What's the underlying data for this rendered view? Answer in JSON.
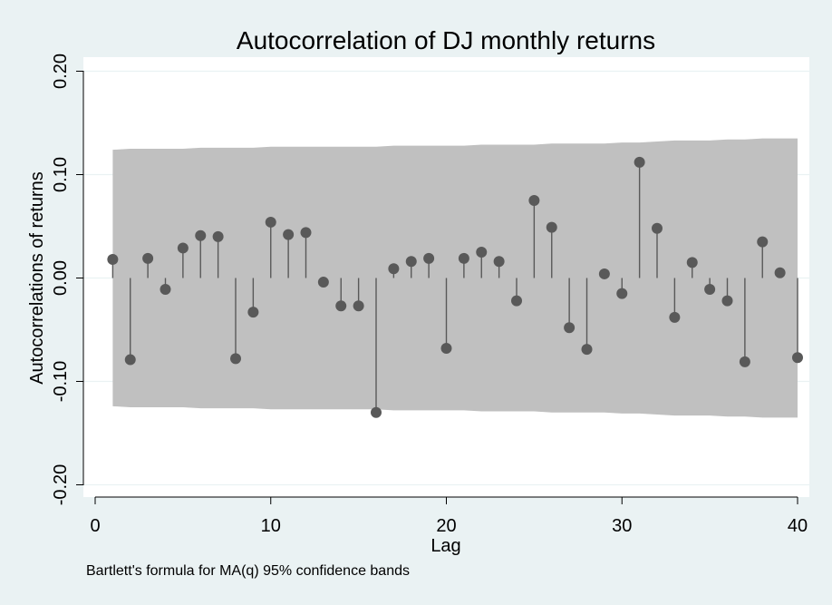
{
  "chart_data": {
    "type": "stem",
    "title": "Autocorrelation of DJ monthly returns",
    "xlabel": "Lag",
    "ylabel": "Autocorrelations of returns",
    "note": "Bartlett's formula for MA(q) 95% confidence bands",
    "xlim": [
      0,
      40
    ],
    "ylim": [
      -0.2,
      0.2
    ],
    "xticks": [
      0,
      10,
      20,
      30,
      40
    ],
    "yticks": [
      -0.2,
      -0.1,
      0.0,
      0.1,
      0.2
    ],
    "ytick_labels": [
      "-0.20",
      "-0.10",
      "0.00",
      "0.10",
      "0.20"
    ],
    "x": [
      1,
      2,
      3,
      4,
      5,
      6,
      7,
      8,
      9,
      10,
      11,
      12,
      13,
      14,
      15,
      16,
      17,
      18,
      19,
      20,
      21,
      22,
      23,
      24,
      25,
      26,
      27,
      28,
      29,
      30,
      31,
      32,
      33,
      34,
      35,
      36,
      37,
      38,
      39,
      40
    ],
    "values": [
      0.018,
      -0.079,
      0.019,
      -0.011,
      0.029,
      0.041,
      0.04,
      -0.078,
      -0.033,
      0.054,
      0.042,
      0.044,
      -0.004,
      -0.027,
      -0.027,
      -0.13,
      0.009,
      0.016,
      0.019,
      -0.068,
      0.019,
      0.025,
      0.016,
      -0.022,
      0.075,
      0.049,
      -0.048,
      -0.069,
      0.004,
      -0.015,
      0.112,
      0.048,
      -0.038,
      0.015,
      -0.011,
      -0.022,
      -0.081,
      0.035,
      0.005,
      -0.077
    ],
    "confidence_band": {
      "label": "95% confidence bands",
      "upper": [
        0.124,
        0.125,
        0.125,
        0.125,
        0.125,
        0.126,
        0.126,
        0.126,
        0.126,
        0.127,
        0.127,
        0.127,
        0.127,
        0.127,
        0.127,
        0.127,
        0.128,
        0.128,
        0.128,
        0.128,
        0.128,
        0.129,
        0.129,
        0.129,
        0.129,
        0.13,
        0.13,
        0.13,
        0.13,
        0.131,
        0.131,
        0.132,
        0.133,
        0.133,
        0.133,
        0.134,
        0.134,
        0.135,
        0.135,
        0.135
      ]
    },
    "colors": {
      "background": "#eaf2f3",
      "plot_area": "#ffffff",
      "band": "#c0c0c0",
      "marker": "#595959",
      "gridline": "#eaf2f3"
    }
  }
}
